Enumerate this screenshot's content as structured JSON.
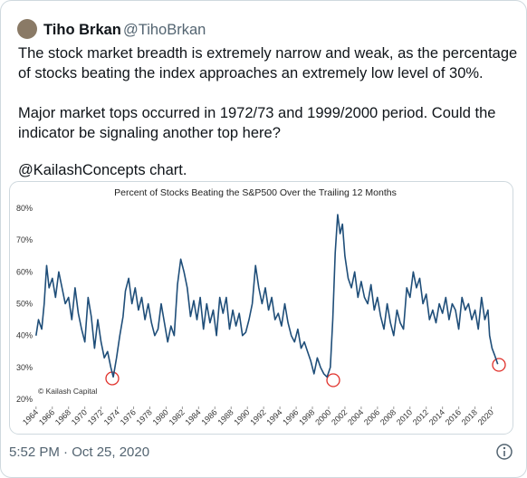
{
  "user": {
    "name": "Tiho Brkan",
    "handle": "@TihoBrkan"
  },
  "text_lines": [
    "The stock market breadth is extremely narrow and weak, as the percentage",
    "of stocks beating the index approaches an extremely low level of 30%.",
    "Major market tops occurred in 1972/73 and 1999/2000 period. Could the",
    "indicator be signaling another top here?",
    "@KailashConcepts chart."
  ],
  "timestamp": "5:52 PM · Oct 25, 2020",
  "chart_data": {
    "type": "line",
    "title": "Percent of Stocks Beating the S&P500 Over the Trailing 12 Months",
    "annotation": "© Kailash Capital",
    "x": [
      1964,
      1964.3,
      1964.7,
      1965,
      1965.3,
      1965.6,
      1966,
      1966.4,
      1966.8,
      1967.2,
      1967.6,
      1968,
      1968.4,
      1968.8,
      1969.2,
      1969.6,
      1970,
      1970.4,
      1970.8,
      1971.2,
      1971.6,
      1972,
      1972.4,
      1972.8,
      1973.2,
      1973.5,
      1973.9,
      1974.3,
      1974.7,
      1975,
      1975.4,
      1975.8,
      1976.2,
      1976.6,
      1977,
      1977.4,
      1977.8,
      1978.2,
      1978.6,
      1979,
      1979.4,
      1979.8,
      1980.2,
      1980.6,
      1981,
      1981.4,
      1981.8,
      1982.2,
      1982.6,
      1983,
      1983.4,
      1983.8,
      1984.2,
      1984.6,
      1985,
      1985.4,
      1985.8,
      1986.2,
      1986.6,
      1987,
      1987.4,
      1987.8,
      1988.2,
      1988.6,
      1989,
      1989.4,
      1989.8,
      1990.2,
      1990.6,
      1991,
      1991.4,
      1991.8,
      1992.2,
      1992.6,
      1993,
      1993.4,
      1993.8,
      1994.2,
      1994.6,
      1995,
      1995.4,
      1995.8,
      1996.2,
      1996.6,
      1997,
      1997.4,
      1997.8,
      1998.2,
      1998.6,
      1999,
      1999.4,
      1999.8,
      2000.2,
      2000.5,
      2000.8,
      2001.1,
      2001.4,
      2001.7,
      2002,
      2002.4,
      2002.8,
      2003.2,
      2003.6,
      2004,
      2004.4,
      2004.8,
      2005.2,
      2005.6,
      2006,
      2006.4,
      2006.8,
      2007.2,
      2007.6,
      2008,
      2008.4,
      2008.8,
      2009.2,
      2009.6,
      2010,
      2010.4,
      2010.8,
      2011.2,
      2011.6,
      2012,
      2012.4,
      2012.8,
      2013.2,
      2013.6,
      2014,
      2014.4,
      2014.8,
      2015.2,
      2015.6,
      2016,
      2016.4,
      2016.8,
      2017.2,
      2017.6,
      2018,
      2018.4,
      2018.8,
      2019.2,
      2019.6,
      2019.8,
      2020.1,
      2020.4,
      2020.8
    ],
    "series": [
      {
        "name": "Percent of Stocks Beating the S&P500",
        "color": "#1f4e79",
        "values": [
          40,
          45,
          42,
          50,
          62,
          55,
          58,
          52,
          60,
          55,
          50,
          52,
          45,
          55,
          47,
          42,
          38,
          52,
          46,
          36,
          45,
          38,
          33,
          35,
          30,
          27,
          33,
          40,
          46,
          54,
          58,
          50,
          55,
          48,
          52,
          45,
          50,
          44,
          40,
          42,
          50,
          44,
          38,
          43,
          40,
          56,
          64,
          60,
          55,
          46,
          51,
          45,
          52,
          42,
          50,
          44,
          48,
          40,
          52,
          47,
          52,
          42,
          48,
          43,
          47,
          40,
          41,
          45,
          50,
          62,
          55,
          50,
          55,
          48,
          52,
          45,
          47,
          43,
          50,
          44,
          40,
          38,
          42,
          36,
          38,
          35,
          32,
          28,
          33,
          30,
          28,
          27,
          30,
          45,
          66,
          78,
          72,
          75,
          65,
          58,
          55,
          60,
          52,
          57,
          52,
          50,
          56,
          48,
          52,
          46,
          42,
          50,
          44,
          40,
          48,
          44,
          42,
          55,
          52,
          60,
          55,
          58,
          50,
          53,
          45,
          48,
          44,
          50,
          47,
          52,
          45,
          50,
          48,
          42,
          52,
          48,
          50,
          45,
          48,
          42,
          52,
          45,
          48,
          40,
          36,
          34,
          31
        ]
      }
    ],
    "xlim": [
      1963.8,
      2021.5
    ],
    "xticks": [
      1964,
      1966,
      1968,
      1970,
      1972,
      1974,
      1976,
      1978,
      1980,
      1982,
      1984,
      1986,
      1988,
      1990,
      1992,
      1994,
      1996,
      1998,
      2000,
      2002,
      2004,
      2006,
      2008,
      2010,
      2012,
      2014,
      2016,
      2018,
      2020
    ],
    "ylim": [
      20,
      80
    ],
    "yticks": [
      {
        "value": 20,
        "label": "20%"
      },
      {
        "value": 30,
        "label": "30%"
      },
      {
        "value": 40,
        "label": "40%"
      },
      {
        "value": 50,
        "label": "50%"
      },
      {
        "value": 60,
        "label": "60%"
      },
      {
        "value": 70,
        "label": "70%"
      },
      {
        "value": 80,
        "label": "80%"
      }
    ],
    "grid": false
  }
}
